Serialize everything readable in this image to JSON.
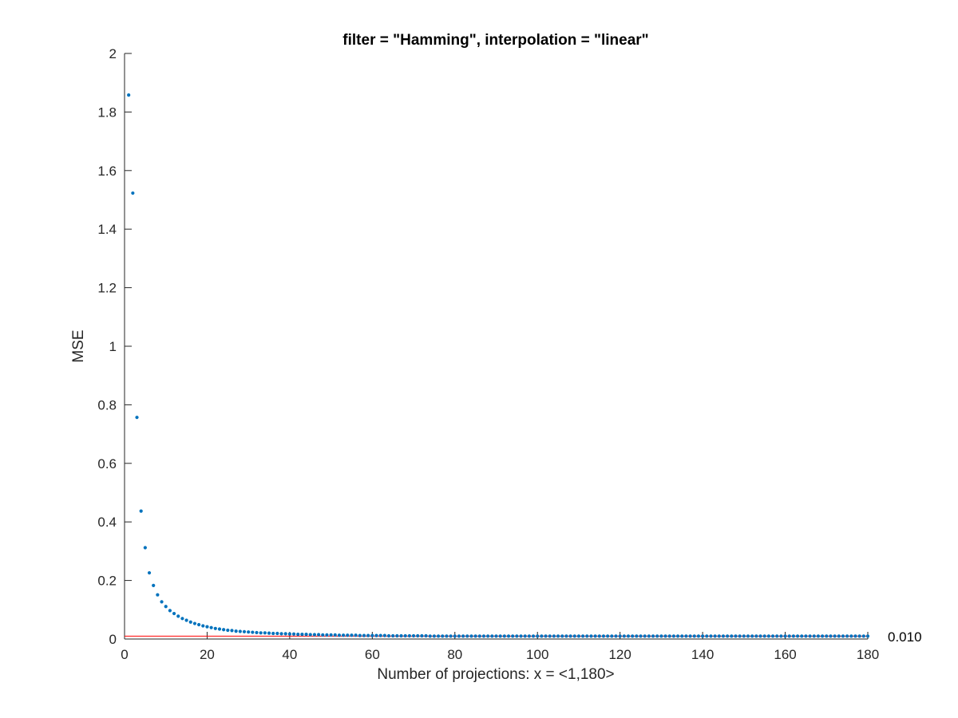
{
  "chart_data": {
    "type": "scatter",
    "title": "filter = \"Hamming\", interpolation = \"linear\"",
    "xlabel": "Number of projections: x = <1,180>",
    "ylabel": "MSE",
    "xlim": [
      0,
      180
    ],
    "ylim": [
      0,
      2
    ],
    "x_ticks": [
      "0",
      "20",
      "40",
      "60",
      "80",
      "100",
      "120",
      "140",
      "160",
      "180"
    ],
    "y_ticks": [
      "0",
      "0.2",
      "0.4",
      "0.6",
      "0.8",
      "1",
      "1.2",
      "1.4",
      "1.6",
      "1.8",
      "2"
    ],
    "grid": false,
    "point_color": "#0072BD",
    "reference_line": {
      "y": 0.01,
      "color": "#FF0000",
      "label": "0.010"
    },
    "series": [
      {
        "x_start": 1,
        "x_end": 180,
        "values": [
          1.858,
          1.523,
          0.757,
          0.437,
          0.312,
          0.226,
          0.183,
          0.151,
          0.127,
          0.111,
          0.097,
          0.087,
          0.078,
          0.07,
          0.064,
          0.058,
          0.053,
          0.049,
          0.045,
          0.042,
          0.039,
          0.036,
          0.034,
          0.032,
          0.03,
          0.029,
          0.027,
          0.026,
          0.025,
          0.024,
          0.023,
          0.022,
          0.021,
          0.021,
          0.02,
          0.019,
          0.019,
          0.018,
          0.018,
          0.017,
          0.017,
          0.016,
          0.016,
          0.016,
          0.015,
          0.015,
          0.015,
          0.014,
          0.014,
          0.014,
          0.014,
          0.013,
          0.013,
          0.013,
          0.013,
          0.013,
          0.012,
          0.012,
          0.012,
          0.012,
          0.012,
          0.012,
          0.012,
          0.011,
          0.011,
          0.011,
          0.011,
          0.011,
          0.011,
          0.011,
          0.011,
          0.011,
          0.011,
          0.01,
          0.01,
          0.01,
          0.01,
          0.01,
          0.01,
          0.01,
          0.01,
          0.01,
          0.01,
          0.01,
          0.01,
          0.01,
          0.01,
          0.01,
          0.01,
          0.01,
          0.01,
          0.01,
          0.01,
          0.01,
          0.01,
          0.01,
          0.01,
          0.01,
          0.01,
          0.01,
          0.01,
          0.01,
          0.01,
          0.01,
          0.01,
          0.01,
          0.01,
          0.01,
          0.01,
          0.01,
          0.01,
          0.01,
          0.01,
          0.01,
          0.01,
          0.01,
          0.01,
          0.01,
          0.01,
          0.01,
          0.01,
          0.01,
          0.01,
          0.01,
          0.01,
          0.01,
          0.01,
          0.01,
          0.01,
          0.01,
          0.01,
          0.01,
          0.01,
          0.01,
          0.01,
          0.01,
          0.01,
          0.01,
          0.01,
          0.01,
          0.01,
          0.01,
          0.01,
          0.01,
          0.01,
          0.01,
          0.01,
          0.01,
          0.01,
          0.01,
          0.01,
          0.01,
          0.01,
          0.01,
          0.01,
          0.01,
          0.01,
          0.01,
          0.01,
          0.01,
          0.01,
          0.01,
          0.01,
          0.01,
          0.01,
          0.01,
          0.01,
          0.01,
          0.01,
          0.01,
          0.01,
          0.01,
          0.01,
          0.01,
          0.01,
          0.01,
          0.01,
          0.01,
          0.01,
          0.01
        ]
      }
    ]
  }
}
